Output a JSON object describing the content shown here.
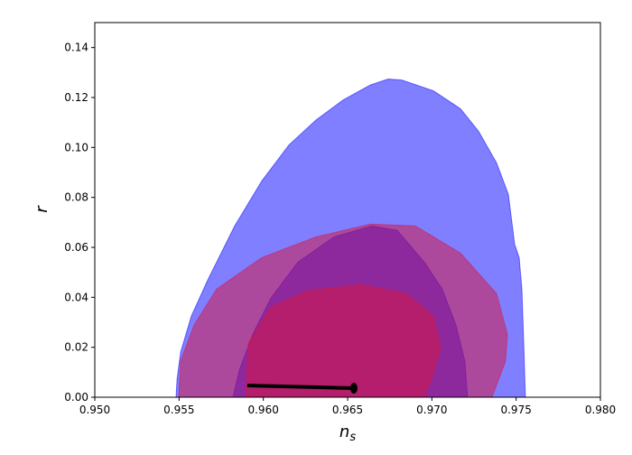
{
  "chart_data": {
    "type": "contour",
    "xlabel": "n_s",
    "ylabel": "r",
    "xlim": [
      0.95,
      0.98
    ],
    "xticks": [
      {
        "value": 0.95,
        "label": "0.950"
      },
      0.955,
      {
        "value": 0.96,
        "label": "0.960"
      },
      0.965,
      {
        "value": 0.97,
        "label": "0.970"
      },
      0.975,
      {
        "value": 0.98,
        "label": "0.980"
      }
    ],
    "ylim": [
      0,
      0.15
    ],
    "yticks": [
      {
        "value": 0,
        "label": "0.00"
      },
      0.02,
      0.04,
      0.06,
      0.08,
      {
        "value": 0.1,
        "label": "0.10"
      },
      0.12,
      0.14
    ],
    "series": [
      {
        "type": "contour",
        "color": "#0000ff",
        "alpha": 0.5,
        "x": [
          0.95482,
          0.95488,
          0.95509,
          0.95573,
          0.9567,
          0.9583,
          0.95991,
          0.96152,
          0.96313,
          0.96473,
          0.96634,
          0.96741,
          0.96821,
          0.97009,
          0.9717,
          0.97277,
          0.97384,
          0.97454,
          0.97491,
          0.97518,
          0.97534,
          0.97545,
          0.97555
        ],
        "values": [
          0,
          0.0072,
          0.018,
          0.0325,
          0.0469,
          0.0686,
          0.0866,
          0.101,
          0.111,
          0.119,
          0.125,
          0.1274,
          0.127,
          0.1227,
          0.1155,
          0.1065,
          0.0938,
          0.0812,
          0.0613,
          0.0559,
          0.0433,
          0.0217,
          0
        ]
      },
      {
        "type": "contour",
        "color": "#0000ff",
        "alpha": 0.5,
        "x": [
          0.9582,
          0.95857,
          0.95938,
          0.96045,
          0.96205,
          0.9642,
          0.96645,
          0.96795,
          0.96955,
          0.97062,
          0.97143,
          0.97196,
          0.97212
        ],
        "values": [
          0,
          0.0108,
          0.0253,
          0.0397,
          0.0541,
          0.0642,
          0.0686,
          0.0668,
          0.0541,
          0.0433,
          0.0289,
          0.0144,
          0
        ]
      },
      {
        "type": "contour",
        "color": "#dc143c",
        "alpha": 0.5,
        "x": [
          0.95498,
          0.95509,
          0.95589,
          0.95723,
          0.95991,
          0.96313,
          0.96634,
          0.96902,
          0.9717,
          0.97384,
          0.97448,
          0.97437,
          0.97357
        ],
        "values": [
          0,
          0.0144,
          0.0289,
          0.0433,
          0.0559,
          0.0642,
          0.0693,
          0.0686,
          0.0577,
          0.0415,
          0.0253,
          0.0144,
          0
        ]
      },
      {
        "type": "contour",
        "color": "#dc143c",
        "alpha": 0.5,
        "x": [
          0.95895,
          0.95911,
          0.96045,
          0.96259,
          0.9658,
          0.96848,
          0.97009,
          0.97052,
          0.96998,
          0.96955
        ],
        "values": [
          0,
          0.0217,
          0.0361,
          0.0426,
          0.0451,
          0.0415,
          0.0325,
          0.0198,
          0.0072,
          0
        ]
      },
      {
        "type": "line",
        "color": "#000000",
        "alpha": 1,
        "x": [
          0.95905,
          0.96537
        ],
        "values": [
          0.0047,
          0.0036
        ]
      }
    ]
  }
}
